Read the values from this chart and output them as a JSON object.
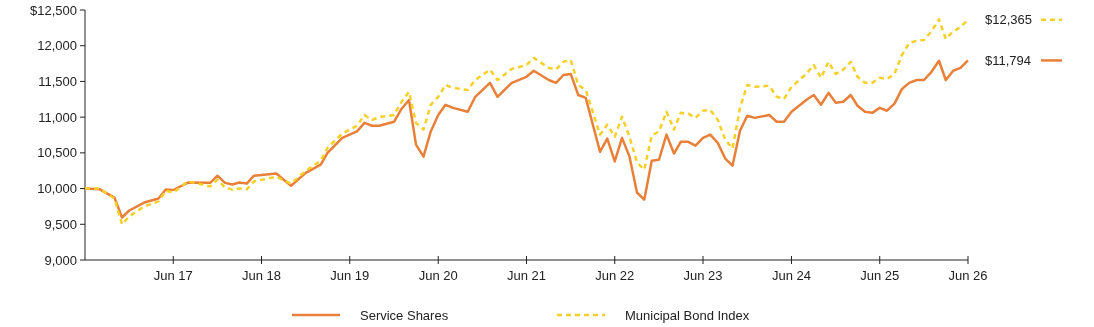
{
  "chart_data": {
    "type": "line",
    "x": [
      "2016-06",
      "2016-08",
      "2016-10",
      "2016-11",
      "2016-12",
      "2017-02",
      "2017-04",
      "2017-05",
      "2017-06",
      "2017-08",
      "2017-11",
      "2017-12",
      "2018-01",
      "2018-02",
      "2018-03",
      "2018-04",
      "2018-05",
      "2018-08",
      "2018-10",
      "2018-12",
      "2019-02",
      "2019-03",
      "2019-05",
      "2019-07",
      "2019-08",
      "2019-09",
      "2019-10",
      "2019-12",
      "2020-01",
      "2020-02",
      "2020-03",
      "2020-04",
      "2020-05",
      "2020-06",
      "2020-07",
      "2020-08",
      "2020-10",
      "2020-11",
      "2021-01",
      "2021-02",
      "2021-04",
      "2021-06",
      "2021-07",
      "2021-09",
      "2021-10",
      "2021-11",
      "2021-12",
      "2022-01",
      "2022-02",
      "2022-04",
      "2022-05",
      "2022-06",
      "2022-07",
      "2022-08",
      "2022-09",
      "2022-10",
      "2022-11",
      "2022-12",
      "2023-01",
      "2023-02",
      "2023-03",
      "2023-04",
      "2023-05",
      "2023-06",
      "2023-07",
      "2023-08",
      "2023-09",
      "2023-10",
      "2023-11",
      "2023-12",
      "2024-01",
      "2024-03",
      "2024-04",
      "2024-05",
      "2024-06",
      "2024-08",
      "2024-09",
      "2024-10",
      "2024-11",
      "2024-12",
      "2025-01",
      "2025-02",
      "2025-03",
      "2025-04",
      "2025-05",
      "2025-06",
      "2025-07",
      "2025-08",
      "2025-09",
      "2025-10",
      "2025-11",
      "2025-12",
      "2026-01",
      "2026-02",
      "2026-03",
      "2026-04",
      "2026-05",
      "2026-06"
    ],
    "series": [
      {
        "name": "Service Shares",
        "color": "#e8803a",
        "line_style": "solid",
        "values": [
          10000,
          9990,
          9874,
          9595,
          9693,
          9804,
          9860,
          9986,
          9980,
          10084,
          10080,
          10180,
          10080,
          10056,
          10084,
          10070,
          10180,
          10210,
          10040,
          10220,
          10335,
          10500,
          10710,
          10800,
          10920,
          10880,
          10880,
          10935,
          11115,
          11240,
          10615,
          10447,
          10800,
          11030,
          11173,
          11130,
          11075,
          11285,
          11480,
          11285,
          11480,
          11565,
          11650,
          11520,
          11480,
          11590,
          11605,
          11310,
          11270,
          10515,
          10700,
          10380,
          10710,
          10447,
          9945,
          9845,
          10390,
          10405,
          10755,
          10490,
          10655,
          10655,
          10600,
          10710,
          10755,
          10640,
          10420,
          10320,
          10810,
          11020,
          10990,
          11030,
          10935,
          10935,
          11075,
          11240,
          11310,
          11173,
          11340,
          11200,
          11215,
          11310,
          11160,
          11075,
          11060,
          11130,
          11090,
          11190,
          11395,
          11480,
          11520,
          11520,
          11635,
          11790,
          11520,
          11650,
          11690,
          11794
        ]
      },
      {
        "name": "Municipal Bond Index",
        "color": "#f5d02a",
        "line_style": "dashed",
        "values": [
          10000,
          10000,
          9860,
          9500,
          9610,
          9750,
          9820,
          9970,
          9945,
          10100,
          10030,
          10125,
          10015,
          9985,
          10000,
          9990,
          10100,
          10165,
          10070,
          10250,
          10390,
          10570,
          10770,
          10880,
          11030,
          10960,
          11000,
          11030,
          11215,
          11355,
          10920,
          10825,
          11173,
          11285,
          11450,
          11410,
          11380,
          11520,
          11665,
          11520,
          11675,
          11730,
          11830,
          11690,
          11665,
          11775,
          11800,
          11450,
          11380,
          10755,
          10895,
          10725,
          11005,
          10725,
          10365,
          10265,
          10740,
          10800,
          11075,
          10825,
          11060,
          11050,
          10990,
          11090,
          11100,
          10965,
          10685,
          10560,
          11130,
          11450,
          11425,
          11440,
          11285,
          11255,
          11425,
          11605,
          11730,
          11550,
          11775,
          11605,
          11665,
          11775,
          11565,
          11480,
          11480,
          11550,
          11535,
          11605,
          11870,
          12040,
          12070,
          12080,
          12200,
          12370,
          12095,
          12200,
          12260,
          12365
        ]
      }
    ],
    "xlim": [
      "2016-06",
      "2026-06"
    ],
    "xticks": [
      {
        "value": "2017-06",
        "label": "Jun 17"
      },
      {
        "value": "2018-06",
        "label": "Jun 18"
      },
      {
        "value": "2019-06",
        "label": "Jun 19"
      },
      {
        "value": "2020-06",
        "label": "Jun 20"
      },
      {
        "value": "2021-06",
        "label": "Jun 21"
      },
      {
        "value": "2022-06",
        "label": "Jun 22"
      },
      {
        "value": "2023-06",
        "label": "Jun 23"
      },
      {
        "value": "2024-06",
        "label": "Jun 24"
      },
      {
        "value": "2025-06",
        "label": "Jun 25"
      },
      {
        "value": "2026-06",
        "label": "Jun 26"
      }
    ],
    "ylim": [
      9000,
      12500
    ],
    "yticks": [
      {
        "value": 9000,
        "label": "9,000"
      },
      {
        "value": 9500,
        "label": "9,500"
      },
      {
        "value": 10000,
        "label": "10,000"
      },
      {
        "value": 10500,
        "label": "10,500"
      },
      {
        "value": 11000,
        "label": "11,000"
      },
      {
        "value": 11500,
        "label": "11,500"
      },
      {
        "value": 12000,
        "label": "12,000"
      },
      {
        "value": 12500,
        "label": "$12,500"
      }
    ],
    "annotations": [
      "$11,794",
      "$12,365"
    ],
    "grid": false,
    "legend": "bottom"
  }
}
